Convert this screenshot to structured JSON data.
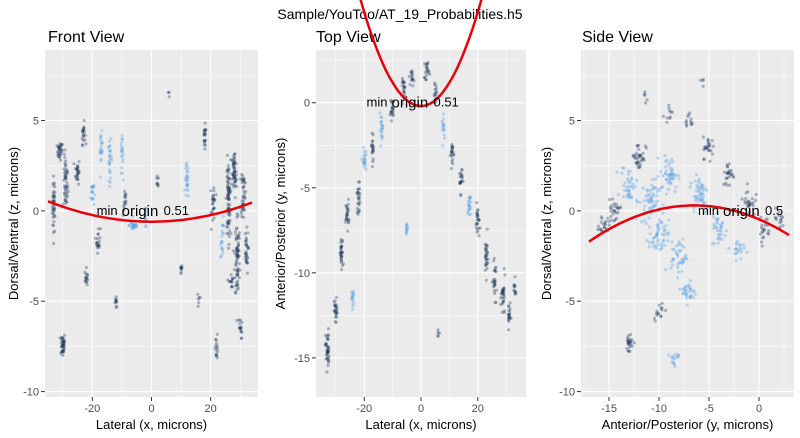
{
  "figure": {
    "title": "Sample/YouToo/AT_19_Probabilities.h5",
    "colors": {
      "panel_bg": "#ebebeb",
      "grid": "#ffffff",
      "fit": "#e8000b",
      "point_dark": "#1f3a5f",
      "point_light": "#56a0e6"
    }
  },
  "chart_data": [
    {
      "type": "scatter",
      "title": "Front View",
      "xlabel": "Lateral (x, microns)",
      "ylabel": "Dorsal/Ventral (z, microns)",
      "xlim": [
        -36,
        36
      ],
      "ylim": [
        -10.3,
        8.9
      ],
      "xticks": [
        -20,
        0,
        20
      ],
      "xtick_labels": [
        "-20",
        "0",
        "20"
      ],
      "yticks": [
        -10,
        -5,
        0,
        5
      ],
      "ytick_labels": [
        "-10",
        "-5",
        "0",
        "5"
      ],
      "fit": {
        "type": "quadratic",
        "a": 0.00092,
        "vertex_x": 0,
        "vertex_y": -0.6,
        "x_range": [
          -35,
          34
        ]
      },
      "annotation": {
        "text_min": "min",
        "text_origin": "origin",
        "value": "0.51",
        "x": -3,
        "y": 0
      },
      "clusters": [
        {
          "x": -33,
          "y": 0.3,
          "dx": 0.5,
          "dy": 1.6,
          "n": 40,
          "c": "d"
        },
        {
          "x": -31,
          "y": 3.3,
          "dx": 0.9,
          "dy": 0.5,
          "n": 30,
          "c": "d"
        },
        {
          "x": -29,
          "y": 1.5,
          "dx": 0.8,
          "dy": 1.5,
          "n": 45,
          "c": "d"
        },
        {
          "x": -30,
          "y": -7.4,
          "dx": 0.8,
          "dy": 0.7,
          "n": 40,
          "c": "d"
        },
        {
          "x": -25,
          "y": 2.2,
          "dx": 0.7,
          "dy": 0.7,
          "n": 25,
          "c": "d"
        },
        {
          "x": -23,
          "y": 4.3,
          "dx": 0.6,
          "dy": 0.6,
          "n": 20,
          "c": "d"
        },
        {
          "x": -22,
          "y": -3.7,
          "dx": 0.6,
          "dy": 0.5,
          "n": 15,
          "c": "d"
        },
        {
          "x": -20,
          "y": 1.0,
          "dx": 0.6,
          "dy": 0.8,
          "n": 18,
          "c": "l"
        },
        {
          "x": -18,
          "y": -1.6,
          "dx": 0.7,
          "dy": 0.7,
          "n": 20,
          "c": "d"
        },
        {
          "x": -17,
          "y": 3.4,
          "dx": 0.5,
          "dy": 0.9,
          "n": 20,
          "c": "l"
        },
        {
          "x": -14,
          "y": 2.8,
          "dx": 0.6,
          "dy": 1.1,
          "n": 25,
          "c": "l"
        },
        {
          "x": -12,
          "y": -5.0,
          "dx": 0.4,
          "dy": 0.4,
          "n": 10,
          "c": "d"
        },
        {
          "x": -10,
          "y": 3.0,
          "dx": 0.4,
          "dy": 1.0,
          "n": 20,
          "c": "l"
        },
        {
          "x": -9,
          "y": 0.5,
          "dx": 0.6,
          "dy": 0.8,
          "n": 15,
          "c": "d"
        },
        {
          "x": -6,
          "y": -0.8,
          "dx": 1.5,
          "dy": 0.3,
          "n": 25,
          "c": "l"
        },
        {
          "x": -2,
          "y": -0.3,
          "dx": 0.4,
          "dy": 0.7,
          "n": 12,
          "c": "l"
        },
        {
          "x": 2,
          "y": 1.5,
          "dx": 0.4,
          "dy": 0.4,
          "n": 8,
          "c": "d"
        },
        {
          "x": 10,
          "y": -3.3,
          "dx": 0.4,
          "dy": 0.4,
          "n": 10,
          "c": "d"
        },
        {
          "x": 12,
          "y": 1.6,
          "dx": 0.6,
          "dy": 1.0,
          "n": 25,
          "c": "l"
        },
        {
          "x": 18,
          "y": 4.0,
          "dx": 0.5,
          "dy": 0.7,
          "n": 20,
          "c": "d"
        },
        {
          "x": 21,
          "y": 0.5,
          "dx": 0.7,
          "dy": 1.2,
          "n": 25,
          "c": "d"
        },
        {
          "x": 22,
          "y": -7.5,
          "dx": 0.5,
          "dy": 0.7,
          "n": 15,
          "c": "d"
        },
        {
          "x": 24,
          "y": -1.5,
          "dx": 0.7,
          "dy": 1.0,
          "n": 20,
          "c": "l"
        },
        {
          "x": 26,
          "y": 0.6,
          "dx": 0.7,
          "dy": 2.2,
          "n": 80,
          "c": "d"
        },
        {
          "x": 28,
          "y": 2.0,
          "dx": 0.8,
          "dy": 1.4,
          "n": 50,
          "c": "d"
        },
        {
          "x": 29,
          "y": -2.5,
          "dx": 0.9,
          "dy": 2.5,
          "n": 70,
          "c": "d"
        },
        {
          "x": 31,
          "y": 1.0,
          "dx": 0.7,
          "dy": 1.4,
          "n": 40,
          "c": "d"
        },
        {
          "x": 32,
          "y": -2.3,
          "dx": 0.7,
          "dy": 1.2,
          "n": 30,
          "c": "d"
        },
        {
          "x": 30,
          "y": -6.5,
          "dx": 0.6,
          "dy": 0.6,
          "n": 15,
          "c": "d"
        },
        {
          "x": 6,
          "y": 6.5,
          "dx": 0.3,
          "dy": 0.3,
          "n": 3,
          "c": "d"
        },
        {
          "x": 16,
          "y": -5.0,
          "dx": 0.4,
          "dy": 0.4,
          "n": 6,
          "c": "d"
        },
        {
          "x": 27,
          "y": -3.9,
          "dx": 0.7,
          "dy": 0.4,
          "n": 12,
          "c": "d"
        }
      ]
    },
    {
      "type": "scatter",
      "title": "Top View",
      "xlabel": "Lateral (x, microns)",
      "ylabel": "Anterior/Posterior (y, microns)",
      "xlim": [
        -37,
        37
      ],
      "ylim": [
        -17.3,
        3.1
      ],
      "xticks": [
        -20,
        0,
        20
      ],
      "xtick_labels": [
        "-20",
        "0",
        "20"
      ],
      "yticks": [
        -15,
        -10,
        -5,
        0
      ],
      "ytick_labels": [
        "-15",
        "-10",
        "-5",
        "0"
      ],
      "fit": {
        "type": "quadratic",
        "a": 0.0138,
        "vertex_x": 0,
        "vertex_y": -0.2,
        "x_range": [
          -34,
          34
        ]
      },
      "annotation": {
        "text_min": "min",
        "text_origin": "origin",
        "value": "0.51",
        "x": -3,
        "y": 0
      },
      "clusters": [
        {
          "x": -33,
          "y": -14.5,
          "dx": 0.6,
          "dy": 1.2,
          "n": 40,
          "c": "d"
        },
        {
          "x": -30,
          "y": -12.3,
          "dx": 0.6,
          "dy": 0.8,
          "n": 25,
          "c": "d"
        },
        {
          "x": -28,
          "y": -9.0,
          "dx": 0.6,
          "dy": 1.0,
          "n": 30,
          "c": "d"
        },
        {
          "x": -26,
          "y": -6.5,
          "dx": 0.6,
          "dy": 0.8,
          "n": 25,
          "c": "d"
        },
        {
          "x": -24,
          "y": -11.5,
          "dx": 0.5,
          "dy": 0.6,
          "n": 15,
          "c": "l"
        },
        {
          "x": -22,
          "y": -5.5,
          "dx": 0.6,
          "dy": 1.0,
          "n": 25,
          "c": "d"
        },
        {
          "x": -20,
          "y": -3.5,
          "dx": 0.6,
          "dy": 0.8,
          "n": 20,
          "c": "l"
        },
        {
          "x": -17,
          "y": -2.5,
          "dx": 0.6,
          "dy": 0.8,
          "n": 20,
          "c": "d"
        },
        {
          "x": -14,
          "y": -1.5,
          "dx": 0.6,
          "dy": 0.8,
          "n": 20,
          "c": "l"
        },
        {
          "x": -10,
          "y": -0.5,
          "dx": 0.8,
          "dy": 0.8,
          "n": 20,
          "c": "d"
        },
        {
          "x": -6,
          "y": 0.8,
          "dx": 0.8,
          "dy": 0.6,
          "n": 20,
          "c": "d"
        },
        {
          "x": -3,
          "y": 1.5,
          "dx": 0.6,
          "dy": 0.5,
          "n": 15,
          "c": "d"
        },
        {
          "x": 2,
          "y": 2.0,
          "dx": 0.8,
          "dy": 0.6,
          "n": 20,
          "c": "d"
        },
        {
          "x": 5,
          "y": 0.5,
          "dx": 0.6,
          "dy": 0.6,
          "n": 15,
          "c": "d"
        },
        {
          "x": 8,
          "y": -1.5,
          "dx": 0.6,
          "dy": 0.7,
          "n": 15,
          "c": "l"
        },
        {
          "x": 11,
          "y": -3.0,
          "dx": 0.6,
          "dy": 0.8,
          "n": 20,
          "c": "d"
        },
        {
          "x": 14,
          "y": -4.5,
          "dx": 0.6,
          "dy": 0.8,
          "n": 20,
          "c": "d"
        },
        {
          "x": 17,
          "y": -6.0,
          "dx": 0.6,
          "dy": 0.8,
          "n": 20,
          "c": "l"
        },
        {
          "x": 20,
          "y": -7.0,
          "dx": 0.6,
          "dy": 1.0,
          "n": 25,
          "c": "d"
        },
        {
          "x": 23,
          "y": -9.0,
          "dx": 0.6,
          "dy": 1.2,
          "n": 30,
          "c": "d"
        },
        {
          "x": 26,
          "y": -10.5,
          "dx": 0.7,
          "dy": 1.0,
          "n": 25,
          "c": "d"
        },
        {
          "x": 29,
          "y": -11.5,
          "dx": 0.7,
          "dy": 1.2,
          "n": 30,
          "c": "d"
        },
        {
          "x": 31,
          "y": -12.5,
          "dx": 0.5,
          "dy": 0.8,
          "n": 20,
          "c": "d"
        },
        {
          "x": 33,
          "y": -11.0,
          "dx": 0.5,
          "dy": 0.6,
          "n": 12,
          "c": "d"
        },
        {
          "x": -5,
          "y": -7.5,
          "dx": 0.5,
          "dy": 0.6,
          "n": 12,
          "c": "l"
        },
        {
          "x": 6,
          "y": -13.5,
          "dx": 0.4,
          "dy": 0.4,
          "n": 5,
          "c": "d"
        }
      ]
    },
    {
      "type": "scatter",
      "title": "Side View",
      "xlabel": "Anterior/Posterior (y, microns)",
      "ylabel": "Dorsal/Ventral (z, microns)",
      "xlim": [
        -17.8,
        3.5
      ],
      "ylim": [
        -10.3,
        8.9
      ],
      "xticks": [
        -15,
        -10,
        -5,
        0
      ],
      "xtick_labels": [
        "-15",
        "-10",
        "-5",
        "0"
      ],
      "yticks": [
        -10,
        -5,
        0,
        5
      ],
      "ytick_labels": [
        "-10",
        "-5",
        "0",
        "5"
      ],
      "fit": {
        "type": "quadratic",
        "a": -0.0182,
        "vertex_x": -6.5,
        "vertex_y": 0.3,
        "x_range": [
          -17,
          3
        ]
      },
      "annotation": {
        "text_min": "min",
        "text_origin": "origin",
        "value": "0.5",
        "x": -1.5,
        "y": 0
      },
      "clusters": [
        {
          "x": -15.5,
          "y": -0.8,
          "dx": 0.5,
          "dy": 0.5,
          "n": 20,
          "c": "d"
        },
        {
          "x": -14.5,
          "y": 0.0,
          "dx": 0.6,
          "dy": 0.5,
          "n": 25,
          "c": "d"
        },
        {
          "x": -13.0,
          "y": 1.5,
          "dx": 0.8,
          "dy": 1.0,
          "n": 40,
          "c": "l"
        },
        {
          "x": -12.0,
          "y": 3.0,
          "dx": 0.7,
          "dy": 0.8,
          "n": 35,
          "c": "d"
        },
        {
          "x": -11.0,
          "y": 0.5,
          "dx": 1.0,
          "dy": 1.2,
          "n": 60,
          "c": "l"
        },
        {
          "x": -10.0,
          "y": -1.5,
          "dx": 1.0,
          "dy": 1.0,
          "n": 50,
          "c": "l"
        },
        {
          "x": -9.0,
          "y": 2.0,
          "dx": 0.9,
          "dy": 1.0,
          "n": 50,
          "c": "l"
        },
        {
          "x": -8.0,
          "y": -2.5,
          "dx": 0.8,
          "dy": 1.0,
          "n": 40,
          "c": "l"
        },
        {
          "x": -7.0,
          "y": -4.5,
          "dx": 0.7,
          "dy": 0.6,
          "n": 30,
          "c": "l"
        },
        {
          "x": -6.0,
          "y": 1.0,
          "dx": 0.9,
          "dy": 1.2,
          "n": 50,
          "c": "l"
        },
        {
          "x": -5.0,
          "y": 3.5,
          "dx": 0.6,
          "dy": 0.6,
          "n": 25,
          "c": "d"
        },
        {
          "x": -4.0,
          "y": -1.0,
          "dx": 0.7,
          "dy": 1.0,
          "n": 35,
          "c": "l"
        },
        {
          "x": -3.0,
          "y": 2.0,
          "dx": 0.6,
          "dy": 0.7,
          "n": 25,
          "c": "d"
        },
        {
          "x": -2.0,
          "y": -2.0,
          "dx": 0.6,
          "dy": 0.7,
          "n": 20,
          "c": "l"
        },
        {
          "x": -1.0,
          "y": 0.5,
          "dx": 0.6,
          "dy": 0.8,
          "n": 25,
          "c": "d"
        },
        {
          "x": 0.5,
          "y": -1.0,
          "dx": 0.6,
          "dy": 0.7,
          "n": 20,
          "c": "d"
        },
        {
          "x": 2.0,
          "y": -0.5,
          "dx": 0.5,
          "dy": 0.6,
          "n": 15,
          "c": "d"
        },
        {
          "x": -13.0,
          "y": -7.3,
          "dx": 0.5,
          "dy": 0.6,
          "n": 25,
          "c": "d"
        },
        {
          "x": -10.0,
          "y": -5.5,
          "dx": 0.5,
          "dy": 0.5,
          "n": 15,
          "c": "d"
        },
        {
          "x": -8.5,
          "y": -8.2,
          "dx": 0.5,
          "dy": 0.6,
          "n": 15,
          "c": "l"
        },
        {
          "x": -9.0,
          "y": 5.5,
          "dx": 0.4,
          "dy": 0.4,
          "n": 10,
          "c": "d"
        },
        {
          "x": -11.5,
          "y": 6.3,
          "dx": 0.3,
          "dy": 0.3,
          "n": 5,
          "c": "d"
        },
        {
          "x": -5.5,
          "y": 7.0,
          "dx": 0.3,
          "dy": 0.3,
          "n": 4,
          "c": "d"
        },
        {
          "x": -7.0,
          "y": 5.0,
          "dx": 0.5,
          "dy": 0.5,
          "n": 12,
          "c": "d"
        }
      ]
    }
  ]
}
